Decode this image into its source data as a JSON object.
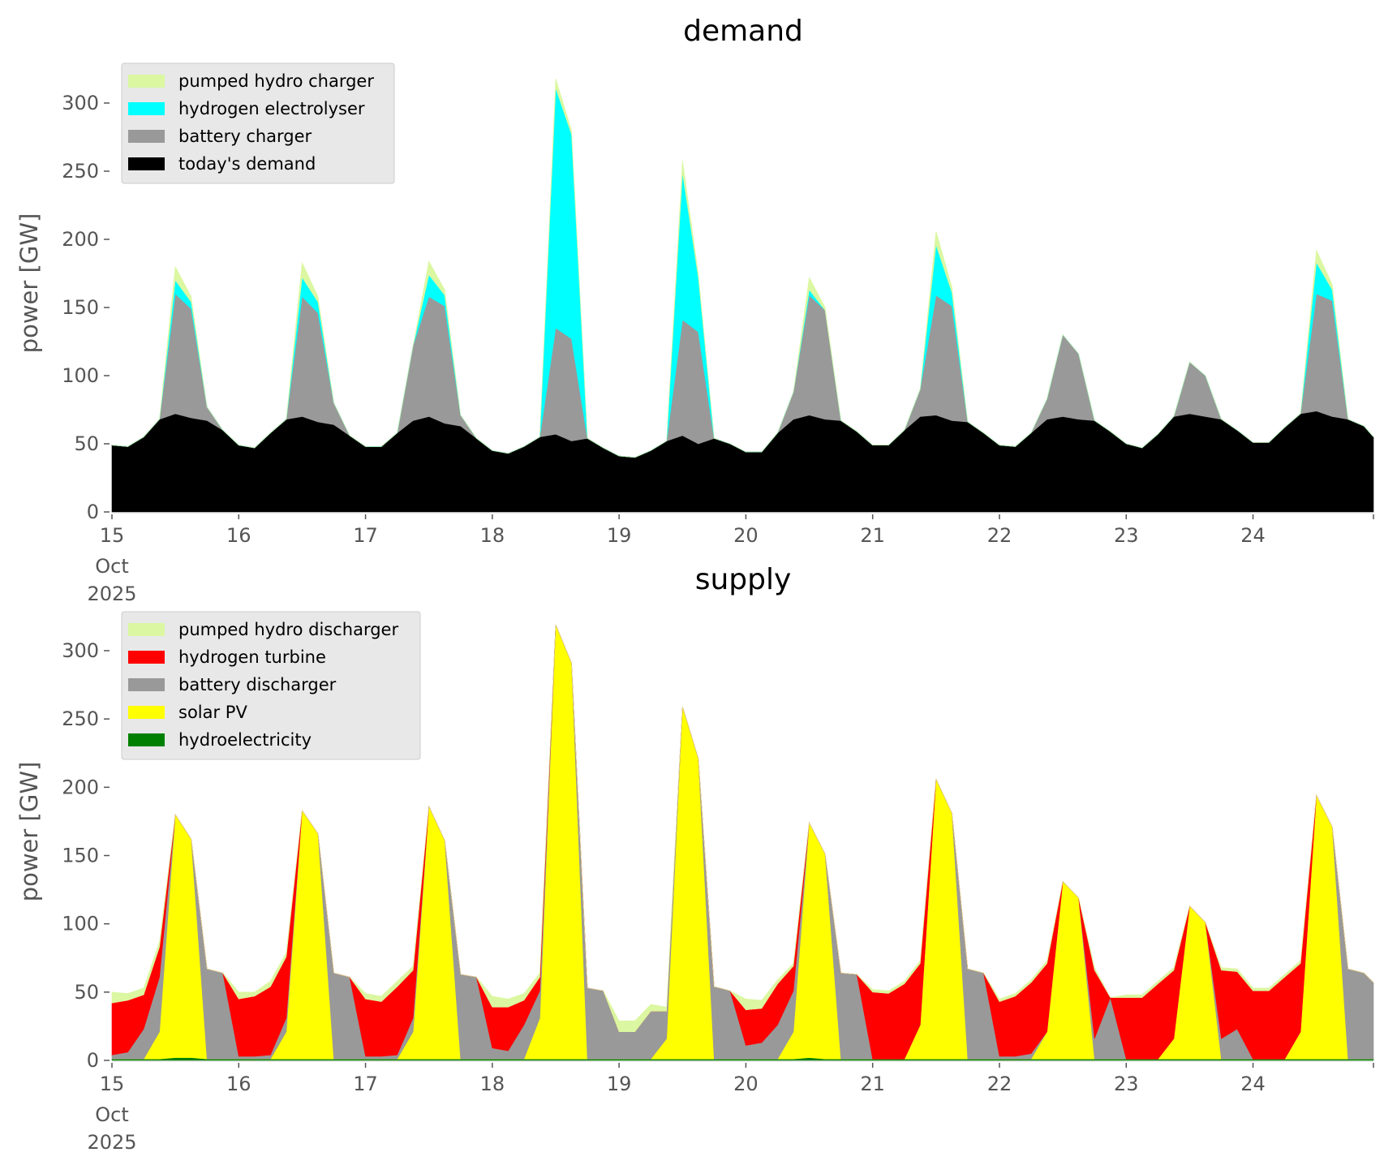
{
  "chart_data": [
    {
      "type": "area",
      "stacked": true,
      "title": "demand",
      "ylabel": "power [GW]",
      "xlabel": "",
      "ylim": [
        0,
        320
      ],
      "yticks": [
        0,
        50,
        100,
        150,
        200,
        250,
        300
      ],
      "xlim": [
        15,
        24.95
      ],
      "xticks": [
        15,
        16,
        17,
        18,
        19,
        20,
        21,
        22,
        23,
        24
      ],
      "xtick_labels": [
        "15",
        "16",
        "17",
        "18",
        "19",
        "20",
        "21",
        "22",
        "23",
        "24"
      ],
      "xtick_sublabels": [
        "Oct",
        "2025"
      ],
      "grid": false,
      "legend_position": "top-left",
      "legend": [
        "pumped hydro charger",
        "hydrogen electrolyser",
        "battery charger",
        "today's demand"
      ],
      "x": [
        15.0,
        15.125,
        15.25,
        15.375,
        15.5,
        15.625,
        15.75,
        15.875,
        16.0,
        16.125,
        16.25,
        16.375,
        16.5,
        16.625,
        16.75,
        16.875,
        17.0,
        17.125,
        17.25,
        17.375,
        17.5,
        17.625,
        17.75,
        17.875,
        18.0,
        18.125,
        18.25,
        18.375,
        18.5,
        18.625,
        18.75,
        18.875,
        19.0,
        19.125,
        19.25,
        19.375,
        19.5,
        19.625,
        19.75,
        19.875,
        20.0,
        20.125,
        20.25,
        20.375,
        20.5,
        20.625,
        20.75,
        20.875,
        21.0,
        21.125,
        21.25,
        21.375,
        21.5,
        21.625,
        21.75,
        21.875,
        22.0,
        22.125,
        22.25,
        22.375,
        22.5,
        22.625,
        22.75,
        22.875,
        23.0,
        23.125,
        23.25,
        23.375,
        23.5,
        23.625,
        23.75,
        23.875,
        24.0,
        24.125,
        24.25,
        24.375,
        24.5,
        24.625,
        24.75,
        24.875,
        24.95
      ],
      "series": [
        {
          "name": "today's demand",
          "color": "#000000",
          "values": [
            49,
            48,
            55,
            68,
            72,
            69,
            67,
            60,
            49,
            47,
            58,
            68,
            70,
            66,
            64,
            56,
            48,
            48,
            58,
            67,
            70,
            65,
            63,
            54,
            45,
            43,
            48,
            55,
            57,
            52,
            54,
            47,
            41,
            40,
            45,
            52,
            56,
            50,
            54,
            50,
            44,
            44,
            58,
            68,
            71,
            68,
            67,
            59,
            49,
            49,
            60,
            70,
            71,
            67,
            66,
            58,
            49,
            48,
            58,
            68,
            70,
            68,
            67,
            59,
            50,
            47,
            57,
            70,
            72,
            70,
            68,
            60,
            51,
            51,
            62,
            72,
            74,
            70,
            68,
            63,
            55
          ]
        },
        {
          "name": "battery charger",
          "color": "#999999",
          "values": [
            0,
            0,
            0,
            0,
            88,
            80,
            10,
            0,
            0,
            0,
            0,
            0,
            88,
            80,
            16,
            0,
            0,
            0,
            0,
            55,
            88,
            86,
            8,
            0,
            0,
            0,
            0,
            0,
            78,
            75,
            0,
            0,
            0,
            0,
            0,
            0,
            85,
            82,
            0,
            0,
            0,
            0,
            0,
            20,
            88,
            80,
            0,
            0,
            0,
            0,
            0,
            20,
            88,
            84,
            0,
            0,
            0,
            0,
            0,
            15,
            60,
            48,
            0,
            0,
            0,
            0,
            0,
            0,
            38,
            30,
            0,
            0,
            0,
            0,
            0,
            0,
            86,
            85,
            0,
            0,
            0
          ]
        },
        {
          "name": "hydrogen electrolyser",
          "color": "#00ffff",
          "values": [
            0,
            0,
            0,
            0,
            10,
            5,
            0,
            0,
            0,
            0,
            0,
            0,
            14,
            8,
            0,
            0,
            0,
            0,
            0,
            0,
            16,
            8,
            0,
            0,
            0,
            0,
            0,
            0,
            176,
            150,
            0,
            0,
            0,
            0,
            0,
            0,
            108,
            40,
            0,
            0,
            0,
            0,
            0,
            0,
            4,
            0,
            0,
            0,
            0,
            0,
            0,
            0,
            37,
            10,
            0,
            0,
            0,
            0,
            0,
            0,
            0,
            0,
            0,
            0,
            0,
            0,
            0,
            0,
            0,
            0,
            0,
            0,
            0,
            0,
            0,
            0,
            23,
            8,
            0,
            0,
            0
          ]
        },
        {
          "name": "pumped hydro charger",
          "color": "#dbf7a1",
          "values": [
            0,
            0,
            0,
            0,
            10,
            4,
            0,
            0,
            0,
            0,
            0,
            0,
            11,
            4,
            0,
            0,
            0,
            0,
            0,
            0,
            10,
            4,
            0,
            0,
            0,
            0,
            0,
            0,
            7,
            3,
            0,
            0,
            0,
            0,
            0,
            0,
            9,
            3,
            0,
            0,
            0,
            0,
            0,
            0,
            9,
            2,
            0,
            0,
            0,
            0,
            0,
            0,
            10,
            4,
            0,
            0,
            0,
            0,
            0,
            0,
            0,
            0,
            0,
            0,
            0,
            0,
            0,
            0,
            0,
            0,
            0,
            0,
            0,
            0,
            0,
            0,
            9,
            4,
            0,
            0,
            0
          ]
        }
      ]
    },
    {
      "type": "area",
      "stacked": true,
      "title": "supply",
      "ylabel": "power [GW]",
      "xlabel": "",
      "ylim": [
        0,
        320
      ],
      "yticks": [
        0,
        50,
        100,
        150,
        200,
        250,
        300
      ],
      "xlim": [
        15,
        24.95
      ],
      "xticks": [
        15,
        16,
        17,
        18,
        19,
        20,
        21,
        22,
        23,
        24
      ],
      "xtick_labels": [
        "15",
        "16",
        "17",
        "18",
        "19",
        "20",
        "21",
        "22",
        "23",
        "24"
      ],
      "xtick_sublabels": [
        "Oct",
        "2025"
      ],
      "grid": false,
      "legend_position": "top-left",
      "legend": [
        "pumped hydro discharger",
        "hydrogen turbine",
        "battery discharger",
        "solar PV",
        "hydroelectricity"
      ],
      "x": [
        15.0,
        15.125,
        15.25,
        15.375,
        15.5,
        15.625,
        15.75,
        15.875,
        16.0,
        16.125,
        16.25,
        16.375,
        16.5,
        16.625,
        16.75,
        16.875,
        17.0,
        17.125,
        17.25,
        17.375,
        17.5,
        17.625,
        17.75,
        17.875,
        18.0,
        18.125,
        18.25,
        18.375,
        18.5,
        18.625,
        18.75,
        18.875,
        19.0,
        19.125,
        19.25,
        19.375,
        19.5,
        19.625,
        19.75,
        19.875,
        20.0,
        20.125,
        20.25,
        20.375,
        20.5,
        20.625,
        20.75,
        20.875,
        21.0,
        21.125,
        21.25,
        21.375,
        21.5,
        21.625,
        21.75,
        21.875,
        22.0,
        22.125,
        22.25,
        22.375,
        22.5,
        22.625,
        22.75,
        22.875,
        23.0,
        23.125,
        23.25,
        23.375,
        23.5,
        23.625,
        23.75,
        23.875,
        24.0,
        24.125,
        24.25,
        24.375,
        24.5,
        24.625,
        24.75,
        24.875,
        24.95
      ],
      "series": [
        {
          "name": "hydroelectricity",
          "color": "#008000",
          "values": [
            1,
            1,
            1,
            1,
            2,
            2,
            1,
            1,
            1,
            1,
            1,
            1,
            1,
            1,
            1,
            1,
            1,
            1,
            1,
            1,
            1,
            1,
            1,
            1,
            1,
            1,
            1,
            1,
            1,
            1,
            1,
            1,
            1,
            1,
            1,
            1,
            1,
            1,
            1,
            1,
            1,
            1,
            1,
            1,
            2,
            1,
            1,
            1,
            1,
            1,
            1,
            1,
            1,
            1,
            1,
            1,
            1,
            1,
            1,
            1,
            1,
            1,
            1,
            1,
            1,
            1,
            1,
            1,
            1,
            1,
            1,
            1,
            1,
            1,
            1,
            1,
            1,
            1,
            1,
            1,
            1
          ]
        },
        {
          "name": "solar PV",
          "color": "#ffff00",
          "values": [
            0,
            0,
            0,
            20,
            178,
            160,
            0,
            0,
            0,
            0,
            0,
            20,
            182,
            165,
            0,
            0,
            0,
            0,
            0,
            20,
            185,
            160,
            0,
            0,
            0,
            0,
            0,
            30,
            318,
            290,
            0,
            0,
            0,
            0,
            0,
            15,
            258,
            220,
            0,
            0,
            0,
            0,
            0,
            20,
            172,
            150,
            0,
            0,
            0,
            0,
            0,
            25,
            205,
            180,
            0,
            0,
            0,
            0,
            0,
            20,
            130,
            118,
            0,
            0,
            0,
            0,
            0,
            15,
            112,
            100,
            0,
            0,
            0,
            0,
            0,
            20,
            193,
            170,
            0,
            0,
            0
          ]
        },
        {
          "name": "battery discharger",
          "color": "#999999",
          "values": [
            3,
            5,
            22,
            40,
            0,
            0,
            66,
            63,
            2,
            2,
            3,
            10,
            0,
            0,
            63,
            60,
            2,
            2,
            3,
            10,
            0,
            0,
            62,
            60,
            8,
            6,
            25,
            20,
            0,
            0,
            52,
            50,
            20,
            20,
            35,
            20,
            0,
            0,
            53,
            50,
            10,
            12,
            25,
            30,
            0,
            0,
            63,
            62,
            0,
            0,
            0,
            0,
            0,
            0,
            66,
            63,
            2,
            2,
            4,
            0,
            0,
            0,
            15,
            45,
            0,
            0,
            0,
            0,
            0,
            0,
            15,
            22,
            0,
            0,
            0,
            0,
            0,
            0,
            66,
            63,
            56
          ]
        },
        {
          "name": "hydrogen turbine",
          "color": "#ff0000",
          "values": [
            38,
            38,
            25,
            22,
            0,
            0,
            0,
            0,
            42,
            44,
            50,
            45,
            0,
            0,
            0,
            0,
            42,
            40,
            50,
            35,
            0,
            0,
            0,
            0,
            30,
            32,
            18,
            10,
            0,
            0,
            0,
            0,
            0,
            0,
            0,
            0,
            0,
            0,
            0,
            0,
            26,
            25,
            30,
            18,
            0,
            0,
            0,
            0,
            49,
            48,
            55,
            45,
            0,
            0,
            0,
            0,
            40,
            44,
            52,
            50,
            0,
            0,
            50,
            0,
            45,
            45,
            55,
            50,
            0,
            0,
            50,
            42,
            50,
            50,
            60,
            50,
            0,
            0,
            0,
            0,
            0
          ]
        },
        {
          "name": "pumped hydro discharger",
          "color": "#dbf7a1",
          "values": [
            8,
            5,
            5,
            4,
            0,
            0,
            0,
            0,
            5,
            3,
            4,
            3,
            0,
            0,
            0,
            0,
            4,
            4,
            4,
            3,
            0,
            0,
            0,
            0,
            8,
            6,
            5,
            3,
            0,
            0,
            0,
            0,
            8,
            8,
            5,
            3,
            0,
            0,
            0,
            0,
            8,
            6,
            3,
            2,
            0,
            0,
            0,
            0,
            2,
            2,
            2,
            2,
            0,
            0,
            0,
            0,
            2,
            2,
            2,
            2,
            0,
            0,
            2,
            0,
            2,
            2,
            2,
            2,
            0,
            0,
            2,
            2,
            2,
            2,
            2,
            2,
            0,
            0,
            0,
            0,
            0
          ]
        }
      ]
    }
  ]
}
